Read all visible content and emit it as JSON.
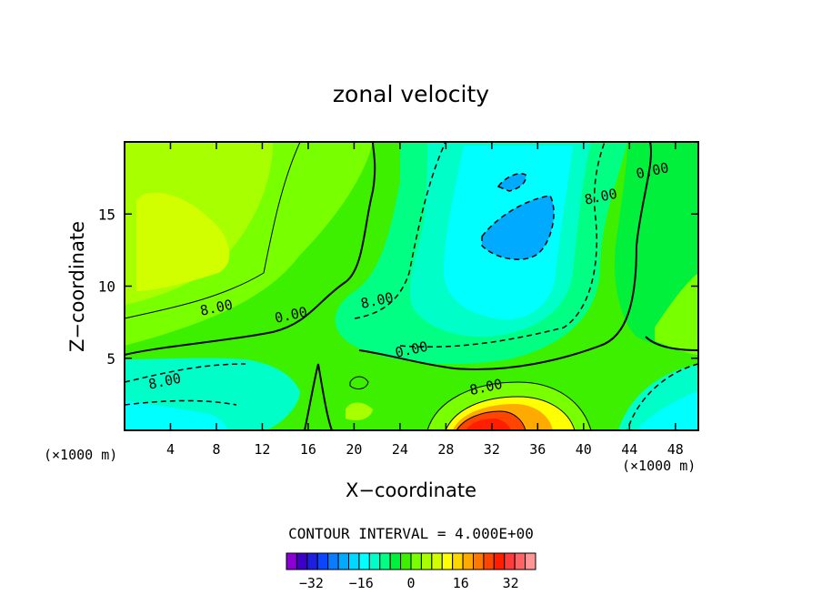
{
  "chart_data": {
    "type": "heatmap",
    "title": "zonal velocity",
    "xlabel": "X−coordinate",
    "ylabel": "Z−coordinate",
    "x_units": "(×1000 m)",
    "x_units_right": "(×1000 m)",
    "xlim": [
      0,
      50
    ],
    "ylim": [
      0,
      20
    ],
    "x_ticks": [
      4,
      8,
      12,
      16,
      20,
      24,
      28,
      32,
      36,
      40,
      44,
      48
    ],
    "y_ticks": [
      5,
      10,
      15
    ],
    "contour_interval_text": "CONTOUR INTERVAL = 4.000E+00",
    "contour_labels": [
      {
        "text": "8.00",
        "x": 8.0,
        "y": 8.5
      },
      {
        "text": "0.00",
        "x": 14.5,
        "y": 8.0
      },
      {
        "text": "8.00",
        "x": 22.0,
        "y": 9.0
      },
      {
        "text": "0.00",
        "x": 25.0,
        "y": 5.6
      },
      {
        "text": "8.00",
        "x": 3.5,
        "y": 3.4
      },
      {
        "text": "8.00",
        "x": 31.5,
        "y": 3.0
      },
      {
        "text": "8.00",
        "x": 41.5,
        "y": 16.2
      },
      {
        "text": "0.00",
        "x": 46.0,
        "y": 18.0
      }
    ],
    "colorbar": {
      "tick_labels": [
        "−32",
        "−16",
        "0",
        "16",
        "32"
      ],
      "tick_values": [
        -32,
        -16,
        0,
        16,
        32
      ],
      "min": -40,
      "max": 40,
      "interval": 4,
      "colors": [
        "#8a00d4",
        "#3c00c8",
        "#1e1ee0",
        "#0a46ff",
        "#0a7cff",
        "#00aaff",
        "#00d8ff",
        "#00ffff",
        "#00ffc8",
        "#00ff82",
        "#00f03c",
        "#3cf000",
        "#78ff00",
        "#a8ff00",
        "#d2ff00",
        "#ffff00",
        "#ffd700",
        "#ffaa00",
        "#ff7800",
        "#ff4600",
        "#ff1e00",
        "#ff3c3c",
        "#ff6464",
        "#ff9696"
      ]
    }
  }
}
